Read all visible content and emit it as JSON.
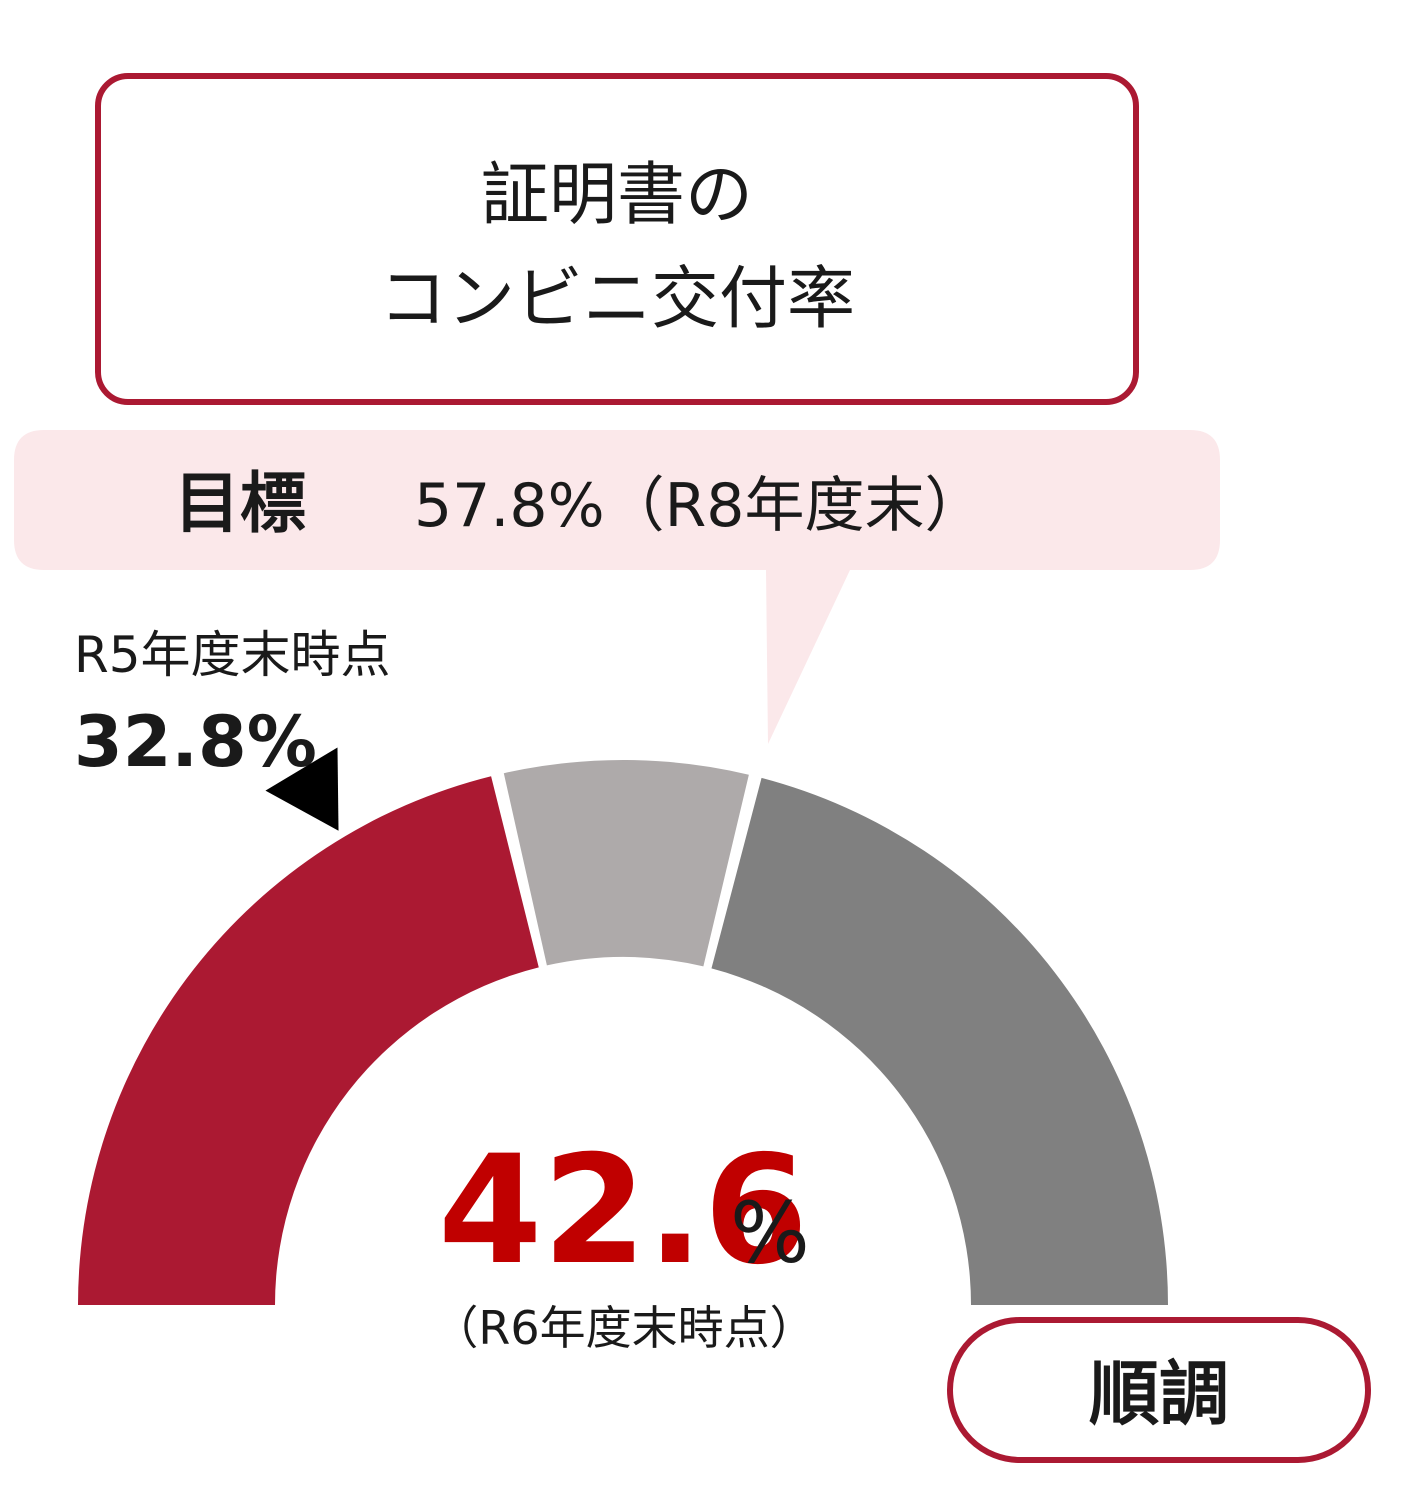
{
  "title": {
    "line1": "証明書の",
    "line2": "コンビニ交付率"
  },
  "target": {
    "label": "目標",
    "value_text": "57.8%（R8年度末）"
  },
  "previous": {
    "label": "R5年度末時点",
    "value_text": "32.8%"
  },
  "current": {
    "value_text": "42.6",
    "unit": "%",
    "note": "（R6年度末時点）"
  },
  "status": {
    "label": "順調"
  },
  "colors": {
    "accent": "#ab1932",
    "title_border": "#ab1932",
    "target_bg": "#fbe8ea",
    "mid_segment": "#aeaaaa",
    "rest_segment": "#808080",
    "current_value": "#c00000",
    "marker": "#000000"
  },
  "chart_data": {
    "type": "gauge",
    "range": [
      0,
      100
    ],
    "values": {
      "previous": 32.8,
      "current": 42.6,
      "target": 57.8
    },
    "segments": [
      {
        "from": 0,
        "to": 42.6,
        "color": "#ab1932"
      },
      {
        "from": 42.6,
        "to": 57.8,
        "color": "#aeaaaa"
      },
      {
        "from": 57.8,
        "to": 100,
        "color": "#808080"
      }
    ]
  }
}
